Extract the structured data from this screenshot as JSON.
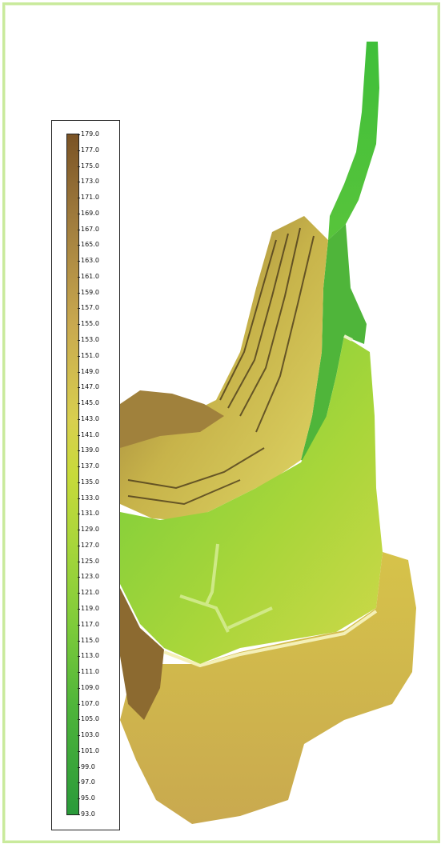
{
  "legend": {
    "ticks": [
      "179.0",
      "177.0",
      "175.0",
      "173.0",
      "171.0",
      "169.0",
      "167.0",
      "165.0",
      "163.0",
      "161.0",
      "159.0",
      "157.0",
      "155.0",
      "153.0",
      "151.0",
      "149.0",
      "147.0",
      "145.0",
      "143.0",
      "141.0",
      "139.0",
      "137.0",
      "135.0",
      "133.0",
      "131.0",
      "129.0",
      "127.0",
      "125.0",
      "123.0",
      "121.0",
      "119.0",
      "117.0",
      "115.0",
      "113.0",
      "111.0",
      "109.0",
      "107.0",
      "105.0",
      "103.0",
      "101.0",
      "99.0",
      "97.0",
      "95.0",
      "93.0"
    ],
    "min": 93.0,
    "max": 179.0,
    "colors": {
      "high": "#7a5325",
      "upper": "#c9a94f",
      "mid": "#d8cf4f",
      "lower": "#a9d63a",
      "low": "#2a9a3a"
    }
  },
  "frame_color": "#c9ea9c"
}
